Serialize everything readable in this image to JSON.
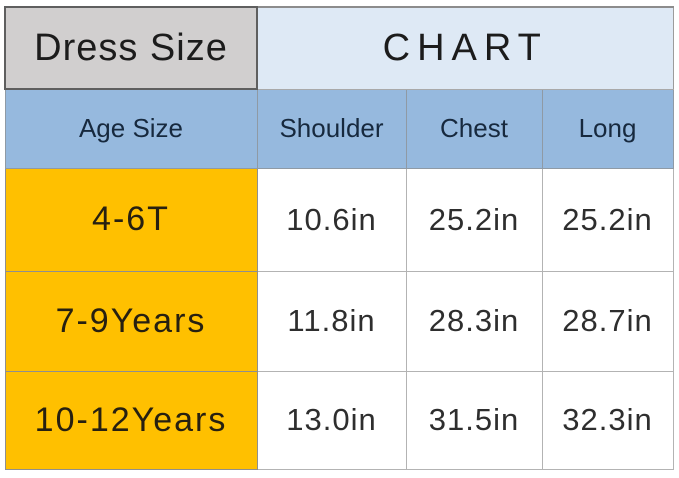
{
  "header": {
    "left_title": "Dress Size",
    "right_title": "CHART"
  },
  "chart_data": {
    "type": "table",
    "title": "Dress Size CHART",
    "columns": [
      "Age Size",
      "Shoulder",
      "Chest",
      "Long"
    ],
    "rows": [
      [
        "4-6T",
        "10.6in",
        "25.2in",
        "25.2in"
      ],
      [
        "7-9Years",
        "11.8in",
        "28.3in",
        "28.7in"
      ],
      [
        "10-12Years",
        "13.0in",
        "31.5in",
        "32.3in"
      ]
    ]
  },
  "colors": {
    "title_gray": "#d1cfcf",
    "title_light_blue": "#dee9f5",
    "subheader_blue": "#96b9de",
    "age_column_yellow": "#ffc000",
    "data_cell_white": "#ffffff",
    "subheader_text_navy": "#17293e",
    "title_text": "#1c1c1c",
    "border_dark": "#5f5f5f",
    "border_light": "#b3b3b3"
  }
}
